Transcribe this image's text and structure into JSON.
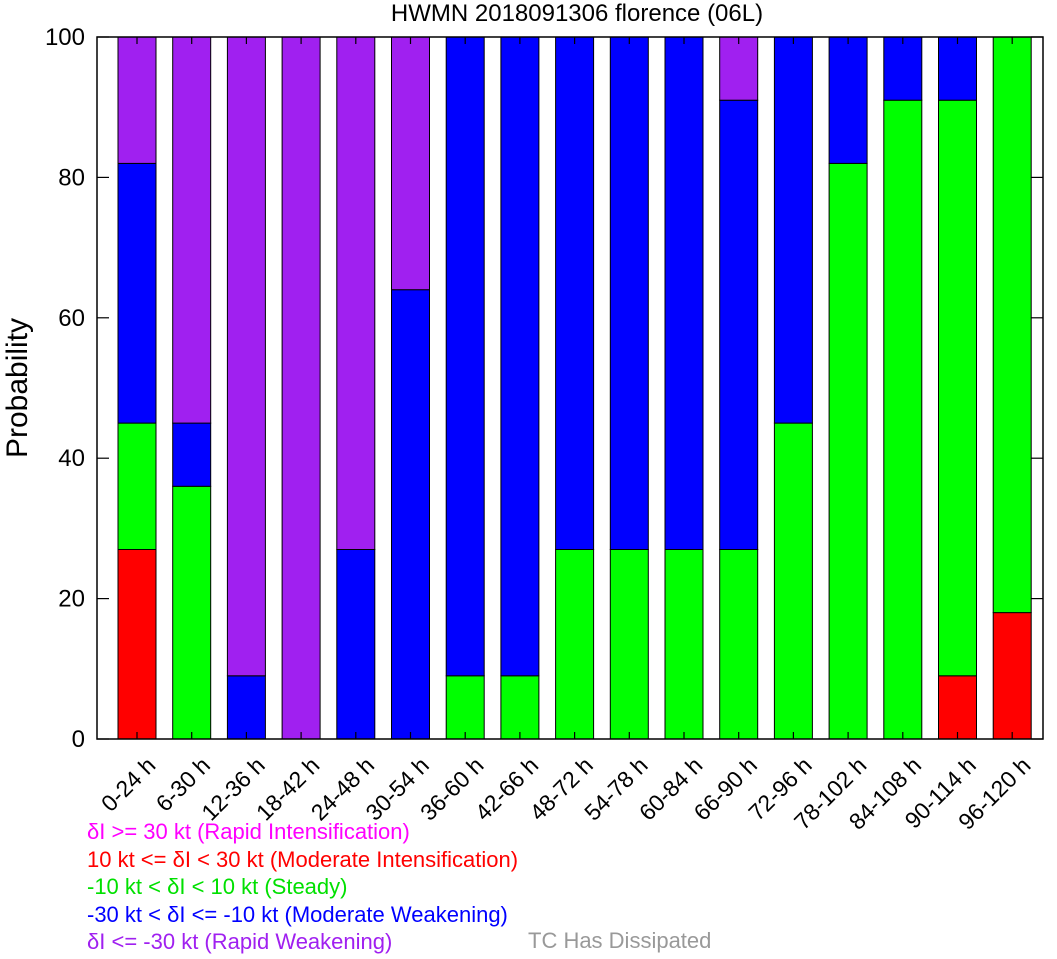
{
  "chart_data": {
    "type": "bar",
    "stacked": true,
    "title": "HWMN 2018091306 florence (06L)",
    "ylabel": "Probability",
    "xlabel": "",
    "ylim": [
      0,
      100
    ],
    "yticks": [
      0,
      20,
      40,
      60,
      80,
      100
    ],
    "categories": [
      "0-24 h",
      "6-30 h",
      "12-36 h",
      "18-42 h",
      "24-48 h",
      "30-54 h",
      "36-60 h",
      "42-66 h",
      "48-72 h",
      "54-78 h",
      "60-84 h",
      "66-90 h",
      "72-96 h",
      "78-102 h",
      "84-108 h",
      "90-114 h",
      "96-120 h"
    ],
    "series": [
      {
        "key": "ri",
        "color": "#ff00ff",
        "values": [
          0,
          0,
          0,
          0,
          0,
          0,
          0,
          0,
          0,
          0,
          0,
          0,
          0,
          0,
          0,
          0,
          0
        ]
      },
      {
        "key": "mi",
        "color": "#ff0000",
        "values": [
          27,
          0,
          0,
          0,
          0,
          0,
          0,
          0,
          0,
          0,
          0,
          0,
          0,
          0,
          0,
          9,
          18
        ]
      },
      {
        "key": "st",
        "color": "#00ff00",
        "values": [
          18,
          36,
          0,
          0,
          0,
          0,
          9,
          9,
          27,
          27,
          27,
          27,
          45,
          82,
          91,
          82,
          82
        ]
      },
      {
        "key": "mw",
        "color": "#0000ff",
        "values": [
          37,
          9,
          9,
          0,
          27,
          64,
          91,
          91,
          73,
          73,
          73,
          64,
          55,
          18,
          9,
          9,
          0
        ]
      },
      {
        "key": "rw",
        "color": "#a020f0",
        "values": [
          18,
          55,
          91,
          100,
          73,
          36,
          0,
          0,
          0,
          0,
          0,
          9,
          0,
          0,
          0,
          0,
          0
        ]
      }
    ],
    "legend_placement": "below-left",
    "grid": false
  },
  "legend": [
    {
      "label": "δI >= 30 kt (Rapid Intensification)",
      "color": "#ff00ff"
    },
    {
      "label": "10 kt <= δI < 30 kt (Moderate Intensification)",
      "color": "#ff0000"
    },
    {
      "label": "-10 kt < δI < 10 kt (Steady)",
      "color": "#00e000"
    },
    {
      "label": "-30 kt < δI <= -10 kt (Moderate Weakening)",
      "color": "#0000ff"
    },
    {
      "label": "δI <= -30 kt (Rapid Weakening)",
      "color": "#a020f0"
    }
  ],
  "dissipated_label": "TC Has Dissipated",
  "dissipated_color": "#999999"
}
